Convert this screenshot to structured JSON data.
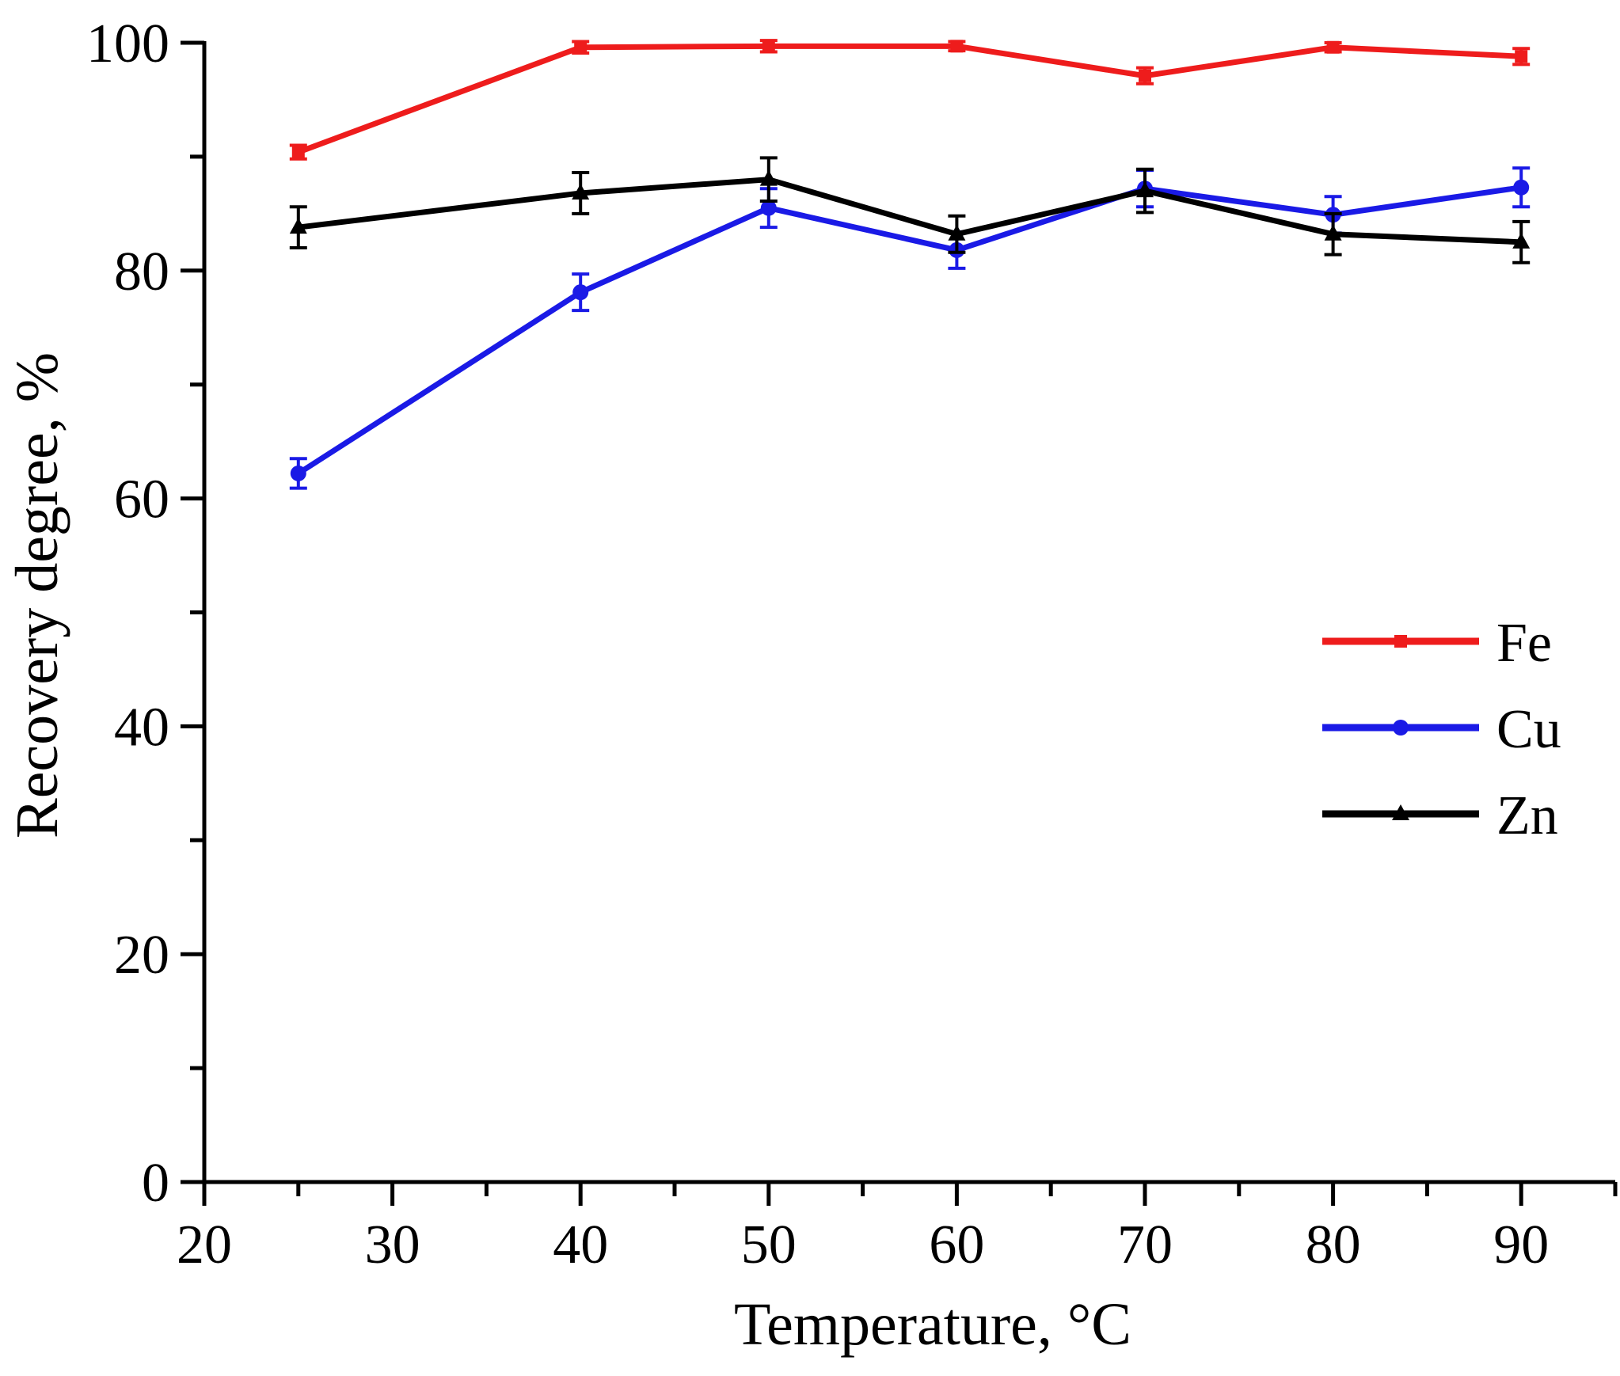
{
  "chart_data": {
    "type": "line",
    "title": "",
    "xlabel": "Temperature, °C",
    "ylabel": "Recovery degree, %",
    "xlim": [
      20,
      95
    ],
    "ylim": [
      0,
      100
    ],
    "x_ticks": [
      20,
      30,
      40,
      50,
      60,
      70,
      80,
      90
    ],
    "y_ticks": [
      0,
      20,
      40,
      60,
      80,
      100
    ],
    "x_minor_ticks": [
      25,
      35,
      45,
      55,
      65,
      75,
      85,
      95
    ],
    "y_minor_ticks": [
      10,
      30,
      50,
      70,
      90
    ],
    "grid": false,
    "legend_position": "right",
    "x": [
      25,
      40,
      50,
      60,
      70,
      80,
      90
    ],
    "series": [
      {
        "name": "Fe",
        "color": "#ee1c1c",
        "marker": "square",
        "values": [
          90.4,
          99.6,
          99.7,
          99.7,
          97.1,
          99.6,
          98.8
        ],
        "errors": [
          0.6,
          0.5,
          0.5,
          0.4,
          0.7,
          0.4,
          0.7
        ]
      },
      {
        "name": "Cu",
        "color": "#1a1ae6",
        "marker": "circle",
        "values": [
          62.2,
          78.1,
          85.5,
          81.8,
          87.2,
          84.9,
          87.3
        ],
        "errors": [
          1.3,
          1.6,
          1.7,
          1.6,
          1.6,
          1.6,
          1.7
        ]
      },
      {
        "name": "Zn",
        "color": "#000000",
        "marker": "triangle",
        "values": [
          83.8,
          86.8,
          88.0,
          83.2,
          87.0,
          83.2,
          82.5
        ],
        "errors": [
          1.8,
          1.8,
          1.9,
          1.6,
          1.9,
          1.8,
          1.8
        ]
      }
    ]
  }
}
